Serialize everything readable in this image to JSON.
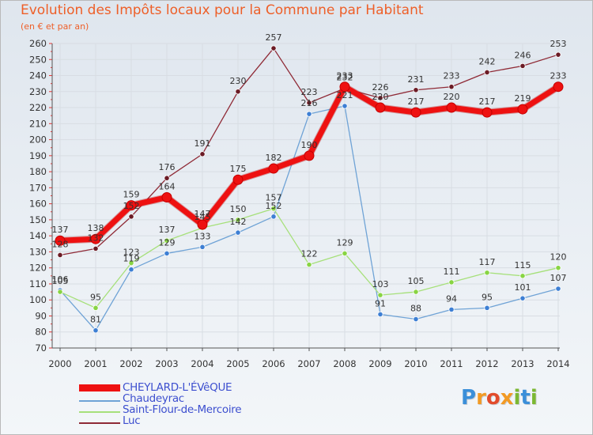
{
  "title": "Evolution des Impôts locaux pour la Commune par Habitant",
  "subtitle": "(en € et par an)",
  "logo": {
    "text": "Proxiti",
    "letters": [
      {
        "ch": "P",
        "color": "#3b8fd9"
      },
      {
        "ch": "r",
        "color": "#f29a24"
      },
      {
        "ch": "o",
        "color": "#e24b2b"
      },
      {
        "ch": "x",
        "color": "#f29a24"
      },
      {
        "ch": "i",
        "color": "#7cb832"
      },
      {
        "ch": "t",
        "color": "#3b8fd9"
      },
      {
        "ch": "i",
        "color": "#7cb832"
      }
    ]
  },
  "chart_data": {
    "type": "line",
    "title": "Evolution des Impôts locaux pour la Commune par Habitant",
    "subtitle": "(en € et par an)",
    "xlabel": "",
    "ylabel": "",
    "x": [
      "2000",
      "2001",
      "2002",
      "2003",
      "2004",
      "2005",
      "2006",
      "2007",
      "2008",
      "2009",
      "2010",
      "2011",
      "2012",
      "2013",
      "2014"
    ],
    "ylim": [
      70,
      260
    ],
    "ytick_step": 10,
    "grid": true,
    "legend_position": "bottom-left",
    "series": [
      {
        "name": "CHEYLARD-L'ÉVêQUE",
        "color": "#ee1111",
        "style": "thick",
        "values": [
          137,
          138,
          159,
          164,
          147,
          175,
          182,
          190,
          233,
          220,
          217,
          220,
          217,
          219,
          233
        ],
        "labels": [
          "137",
          "138",
          "159",
          "164",
          "147",
          "175",
          "182",
          "190",
          "233",
          "220",
          "217",
          "220",
          "217",
          "219",
          "233"
        ]
      },
      {
        "name": "Chaudeyrac",
        "color": "#6fa3d6",
        "marker": "#3d7fd4",
        "style": "thin",
        "values": [
          106,
          81,
          119,
          129,
          133,
          142,
          152,
          216,
          221,
          91,
          88,
          94,
          95,
          101,
          107
        ],
        "labels": [
          "106",
          "81",
          "119",
          "129",
          "133",
          "142",
          "152",
          "216",
          "221",
          "91",
          "88",
          "94",
          "95",
          "101",
          "107"
        ]
      },
      {
        "name": "Saint-Flour-de-Mercoire",
        "color": "#a6e07a",
        "marker": "#88d443",
        "style": "thin",
        "values": [
          105,
          95,
          123,
          137,
          145,
          150,
          157,
          122,
          129,
          103,
          105,
          111,
          117,
          115,
          120
        ],
        "labels": [
          "105",
          "95",
          "123",
          "137",
          "145",
          "150",
          "157",
          "122",
          "129",
          "103",
          "105",
          "111",
          "117",
          "115",
          "120"
        ]
      },
      {
        "name": "Luc",
        "color": "#8f2a36",
        "marker": "#6b1b25",
        "style": "thin",
        "values": [
          128,
          132,
          152,
          176,
          191,
          230,
          257,
          223,
          232,
          226,
          231,
          233,
          242,
          246,
          253
        ],
        "labels": [
          "128",
          "132",
          "152",
          "176",
          "191",
          "230",
          "257",
          "223",
          "232",
          "226",
          "231",
          "233",
          "242",
          "246",
          "253"
        ]
      }
    ]
  }
}
